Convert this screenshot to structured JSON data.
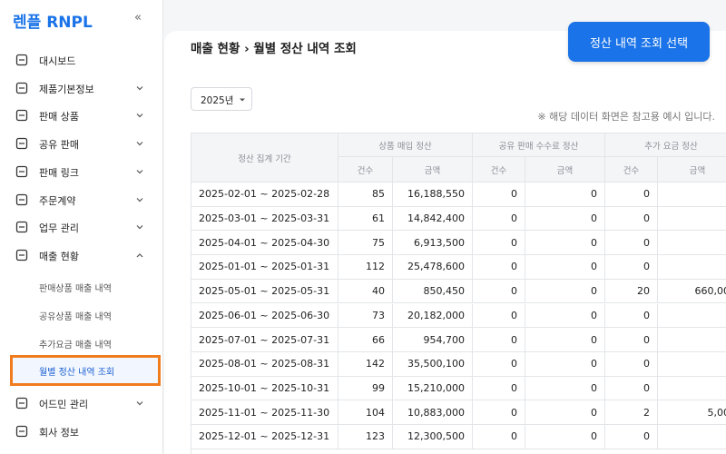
{
  "sidebar": {
    "logo": "렌플 RNPL",
    "collapse": "«",
    "menu": [
      {
        "label": "대시보드"
      },
      {
        "label": "제품기본정보",
        "chevron": "down"
      },
      {
        "label": "판매 상품",
        "chevron": "down"
      },
      {
        "label": "공유 판매",
        "chevron": "down"
      },
      {
        "label": "판매 링크",
        "chevron": "down"
      },
      {
        "label": "주문계약",
        "chevron": "down"
      },
      {
        "label": "업무 관리",
        "chevron": "down"
      },
      {
        "label": "매출 현황",
        "chevron": "up"
      }
    ],
    "submenu": [
      "판매상품 매출 내역",
      "공유상품 매출 내역",
      "추가요금 매출 내역",
      "월별 정산 내역 조회"
    ],
    "selected_submenu": 3,
    "menu_after": [
      {
        "label": "어드민 관리",
        "chevron": "down"
      },
      {
        "label": "회사 정보"
      }
    ]
  },
  "header": {
    "breadcrumb": "매출 현황 › 월별 정산 내역 조회",
    "button": "정산 내역 조회 선택"
  },
  "filter": {
    "year": "2025년",
    "note": "※ 해당 데이터 화면은 참고용 예시 입니다."
  },
  "table": {
    "period_header": "정산 집계 기간",
    "groups": [
      "상품 매입 정산",
      "공유 판매 수수료 정산",
      "추가 요금 정산"
    ],
    "subheaders": [
      "건수",
      "금액",
      "건수",
      "금액",
      "건수",
      "금액"
    ],
    "rows": [
      [
        "2025-02-01 ~ 2025-02-28",
        "85",
        "16,188,550",
        "0",
        "0",
        "0",
        null
      ],
      [
        "2025-03-01 ~ 2025-03-31",
        "61",
        "14,842,400",
        "0",
        "0",
        "0",
        null
      ],
      [
        "2025-04-01 ~ 2025-04-30",
        "75",
        "6,913,500",
        "0",
        "0",
        "0",
        null
      ],
      [
        "2025-01-01 ~ 2025-01-31",
        "112",
        "25,478,600",
        "0",
        "0",
        "0",
        null
      ],
      [
        "2025-05-01 ~ 2025-05-31",
        "40",
        "850,450",
        "0",
        "0",
        "20",
        "660,00"
      ],
      [
        "2025-06-01 ~ 2025-06-30",
        "73",
        "20,182,000",
        "0",
        "0",
        "0",
        null
      ],
      [
        "2025-07-01 ~ 2025-07-31",
        "66",
        "954,700",
        "0",
        "0",
        "0",
        null
      ],
      [
        "2025-08-01 ~ 2025-08-31",
        "142",
        "35,500,100",
        "0",
        "0",
        "0",
        null
      ],
      [
        "2025-10-01 ~ 2025-10-31",
        "99",
        "15,210,000",
        "0",
        "0",
        "0",
        null
      ],
      [
        "2025-11-01 ~ 2025-11-30",
        "104",
        "10,883,000",
        "0",
        "0",
        "2",
        "5,00"
      ],
      [
        "2025-12-01 ~ 2025-12-31",
        "123",
        "12,300,500",
        "0",
        "0",
        "0",
        null
      ]
    ]
  }
}
